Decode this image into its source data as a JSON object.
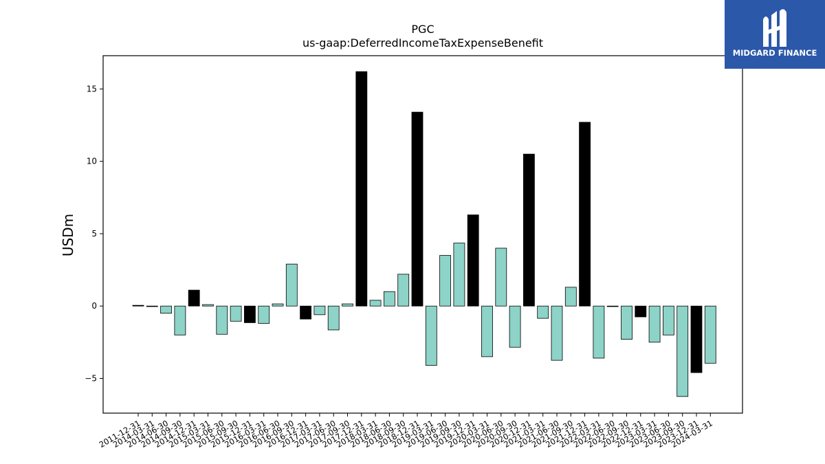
{
  "chart_data": {
    "type": "bar",
    "title": "PGC",
    "subtitle": "us-gaap:DeferredIncomeTaxExpenseBenefit",
    "xlabel": "",
    "ylabel": "USDm",
    "ylim": [
      -7.4,
      17.3
    ],
    "yticks": [
      -5,
      0,
      5,
      10,
      15
    ],
    "ytick_labels": [
      "−5",
      "0",
      "5",
      "10",
      "15"
    ],
    "grid": false,
    "colors": {
      "quarterly": "#8dd3c7",
      "annual": "#000000",
      "edge": "#000000"
    },
    "categories": [
      "2011-12-31",
      "2014-03-31",
      "2014-06-30",
      "2014-09-30",
      "2014-12-31",
      "2015-03-31",
      "2015-06-30",
      "2015-09-30",
      "2015-12-31",
      "2016-03-31",
      "2016-06-30",
      "2016-09-30",
      "2016-12-31",
      "2017-03-31",
      "2017-06-30",
      "2017-09-30",
      "2017-12-31",
      "2018-03-31",
      "2018-06-30",
      "2018-09-30",
      "2018-12-31",
      "2019-03-31",
      "2019-06-30",
      "2019-09-30",
      "2019-12-31",
      "2020-03-31",
      "2020-06-30",
      "2020-09-30",
      "2020-12-31",
      "2021-03-31",
      "2021-06-30",
      "2021-09-30",
      "2021-12-31",
      "2022-03-31",
      "2022-06-30",
      "2022-09-30",
      "2022-12-31",
      "2023-03-31",
      "2023-06-30",
      "2023-09-30",
      "2023-12-31",
      "2024-03-31"
    ],
    "values": [
      0.05,
      -0.03,
      -0.5,
      -2.0,
      1.1,
      0.1,
      -1.95,
      -1.05,
      -1.15,
      -1.2,
      0.15,
      2.9,
      -0.9,
      -0.6,
      -1.65,
      0.15,
      16.2,
      0.4,
      1.0,
      2.2,
      13.4,
      -4.1,
      3.5,
      4.35,
      6.3,
      -3.5,
      4.0,
      -2.85,
      10.5,
      -0.85,
      -3.75,
      1.3,
      12.7,
      -3.6,
      -0.03,
      -2.3,
      -0.75,
      -2.5,
      -2.0,
      -6.25,
      -4.6,
      -3.95
    ],
    "annual": [
      true,
      false,
      false,
      false,
      true,
      false,
      false,
      false,
      true,
      false,
      false,
      false,
      true,
      false,
      false,
      false,
      true,
      false,
      false,
      false,
      true,
      false,
      false,
      false,
      true,
      false,
      false,
      false,
      true,
      false,
      false,
      false,
      true,
      false,
      false,
      false,
      true,
      false,
      false,
      false,
      true,
      false
    ]
  },
  "logo": {
    "text": "MIDGARD FINANCE",
    "background": "#2b58a8"
  }
}
